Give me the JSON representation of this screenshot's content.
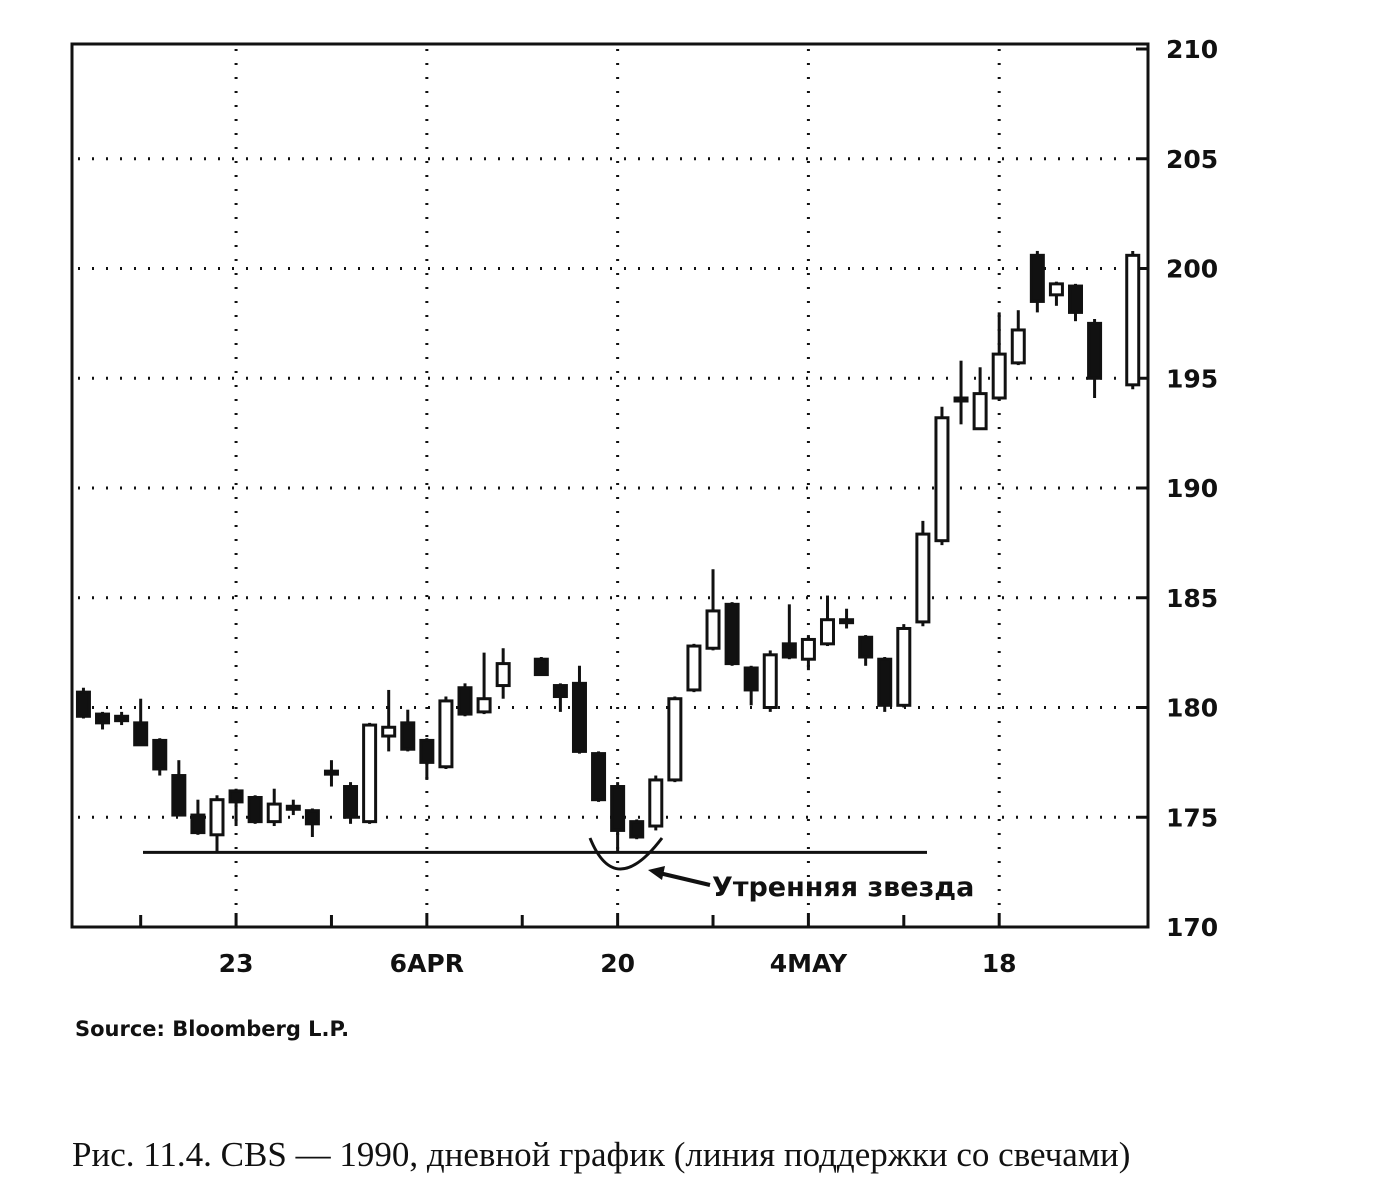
{
  "chart_data": {
    "type": "candlestick",
    "x": [
      0,
      1,
      2,
      3,
      4,
      5,
      6,
      7,
      8,
      9,
      10,
      11,
      12,
      13,
      14,
      15,
      16,
      17,
      18,
      19,
      20,
      21,
      22,
      24,
      25,
      26,
      27,
      28,
      29,
      30,
      31,
      32,
      33,
      34,
      35,
      36,
      37,
      38,
      39,
      40,
      41,
      42,
      43,
      44,
      45,
      46,
      47,
      48,
      49,
      50,
      51,
      52,
      53,
      55
    ],
    "open": [
      180.7,
      179.7,
      179.6,
      179.3,
      178.5,
      176.9,
      175.1,
      174.2,
      176.2,
      175.9,
      174.8,
      175.5,
      175.3,
      177.1,
      176.4,
      174.8,
      178.7,
      179.3,
      178.5,
      177.3,
      180.9,
      179.8,
      181.0,
      182.2,
      181.0,
      181.1,
      177.9,
      176.4,
      174.8,
      174.6,
      176.7,
      180.8,
      182.7,
      184.7,
      181.8,
      180.0,
      182.9,
      182.2,
      182.9,
      184.0,
      183.2,
      182.2,
      180.1,
      183.9,
      187.6,
      194.1,
      192.7,
      194.1,
      195.7,
      200.6,
      198.8,
      199.2,
      197.5,
      194.7
    ],
    "high": [
      180.9,
      179.8,
      179.8,
      180.4,
      178.6,
      177.6,
      175.8,
      176.0,
      176.3,
      176.0,
      176.3,
      175.8,
      175.4,
      177.6,
      176.6,
      179.3,
      180.8,
      179.9,
      178.6,
      180.5,
      181.1,
      182.5,
      182.7,
      182.3,
      181.1,
      181.9,
      178.0,
      176.6,
      174.9,
      176.9,
      180.5,
      182.9,
      186.3,
      184.8,
      181.9,
      182.6,
      184.7,
      183.3,
      185.1,
      184.5,
      183.3,
      182.3,
      183.8,
      188.5,
      193.7,
      195.8,
      195.5,
      198.0,
      198.1,
      200.8,
      199.4,
      199.3,
      197.7,
      200.8
    ],
    "low": [
      179.5,
      179.0,
      179.2,
      178.3,
      176.9,
      175.1,
      174.2,
      173.4,
      174.6,
      174.7,
      174.6,
      175.1,
      174.1,
      176.4,
      174.7,
      174.7,
      178.0,
      178.0,
      176.7,
      177.2,
      179.6,
      179.7,
      180.4,
      181.5,
      179.8,
      177.9,
      175.7,
      173.4,
      174.0,
      174.4,
      176.6,
      180.7,
      182.6,
      181.9,
      180.1,
      179.8,
      182.2,
      181.7,
      182.8,
      183.6,
      181.9,
      179.8,
      180.0,
      183.7,
      187.4,
      192.9,
      192.7,
      194.0,
      195.6,
      198.0,
      198.3,
      197.6,
      194.1,
      194.5
    ],
    "close": [
      179.6,
      179.3,
      179.4,
      178.3,
      177.2,
      175.1,
      174.3,
      175.8,
      175.7,
      174.8,
      175.6,
      175.4,
      174.7,
      177.0,
      175.0,
      179.2,
      179.1,
      178.1,
      177.5,
      180.3,
      179.7,
      180.4,
      182.0,
      181.5,
      180.5,
      178.0,
      175.8,
      174.4,
      174.1,
      176.7,
      180.4,
      182.8,
      184.4,
      182.0,
      180.8,
      182.4,
      182.3,
      183.1,
      184.0,
      183.9,
      182.3,
      180.1,
      183.6,
      187.9,
      193.2,
      194.0,
      194.3,
      196.1,
      197.2,
      198.5,
      199.3,
      198.0,
      195.0,
      200.6
    ],
    "xlim": [
      -0.6,
      55.8
    ],
    "xticks": [
      {
        "value": 8,
        "label": "23"
      },
      {
        "value": 18,
        "label": "6APR"
      },
      {
        "value": 28,
        "label": "20"
      },
      {
        "value": 38,
        "label": "4MAY"
      },
      {
        "value": 48,
        "label": "18"
      }
    ],
    "xminor_ticks": [
      3,
      13,
      23,
      33,
      43
    ],
    "ylim": [
      170,
      210
    ],
    "yticks": [
      170,
      175,
      180,
      185,
      190,
      195,
      200,
      205,
      210
    ],
    "grid": true,
    "up_color": "#ffffff",
    "down_color": "#111111",
    "support": 173.4,
    "annotation": "Утренняя звезда",
    "source": "Source:  Bloomberg L.P.",
    "caption": "Рис. 11.4. CBS — 1990, дневной график (линия поддержки со свечами)"
  }
}
